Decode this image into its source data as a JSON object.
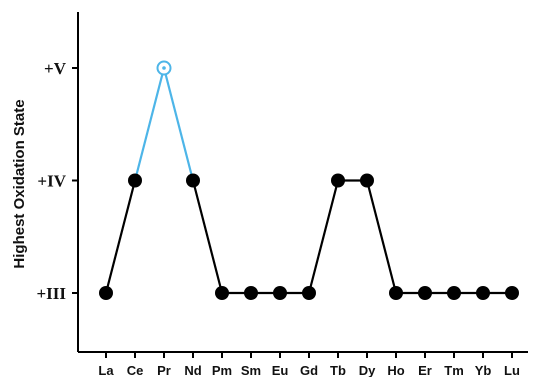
{
  "chart_data": {
    "type": "line",
    "title": "",
    "xlabel": "",
    "ylabel": "Highest Oxidation State",
    "categories": [
      "La",
      "Ce",
      "Pr",
      "Nd",
      "Pm",
      "Sm",
      "Eu",
      "Gd",
      "Tb",
      "Dy",
      "Ho",
      "Er",
      "Tm",
      "Yb",
      "Lu"
    ],
    "values": [
      3,
      4,
      5,
      4,
      3,
      3,
      3,
      3,
      4,
      4,
      3,
      3,
      3,
      3,
      3
    ],
    "y_ticks": [
      {
        "value": 3,
        "label": "+III"
      },
      {
        "value": 4,
        "label": "+IV"
      },
      {
        "value": 5,
        "label": "+V"
      }
    ],
    "ylim": [
      2.75,
      5.5
    ],
    "highlight_index": 2,
    "colors": {
      "main": "#000000",
      "highlight": "#4db5e8"
    },
    "grid": false
  }
}
